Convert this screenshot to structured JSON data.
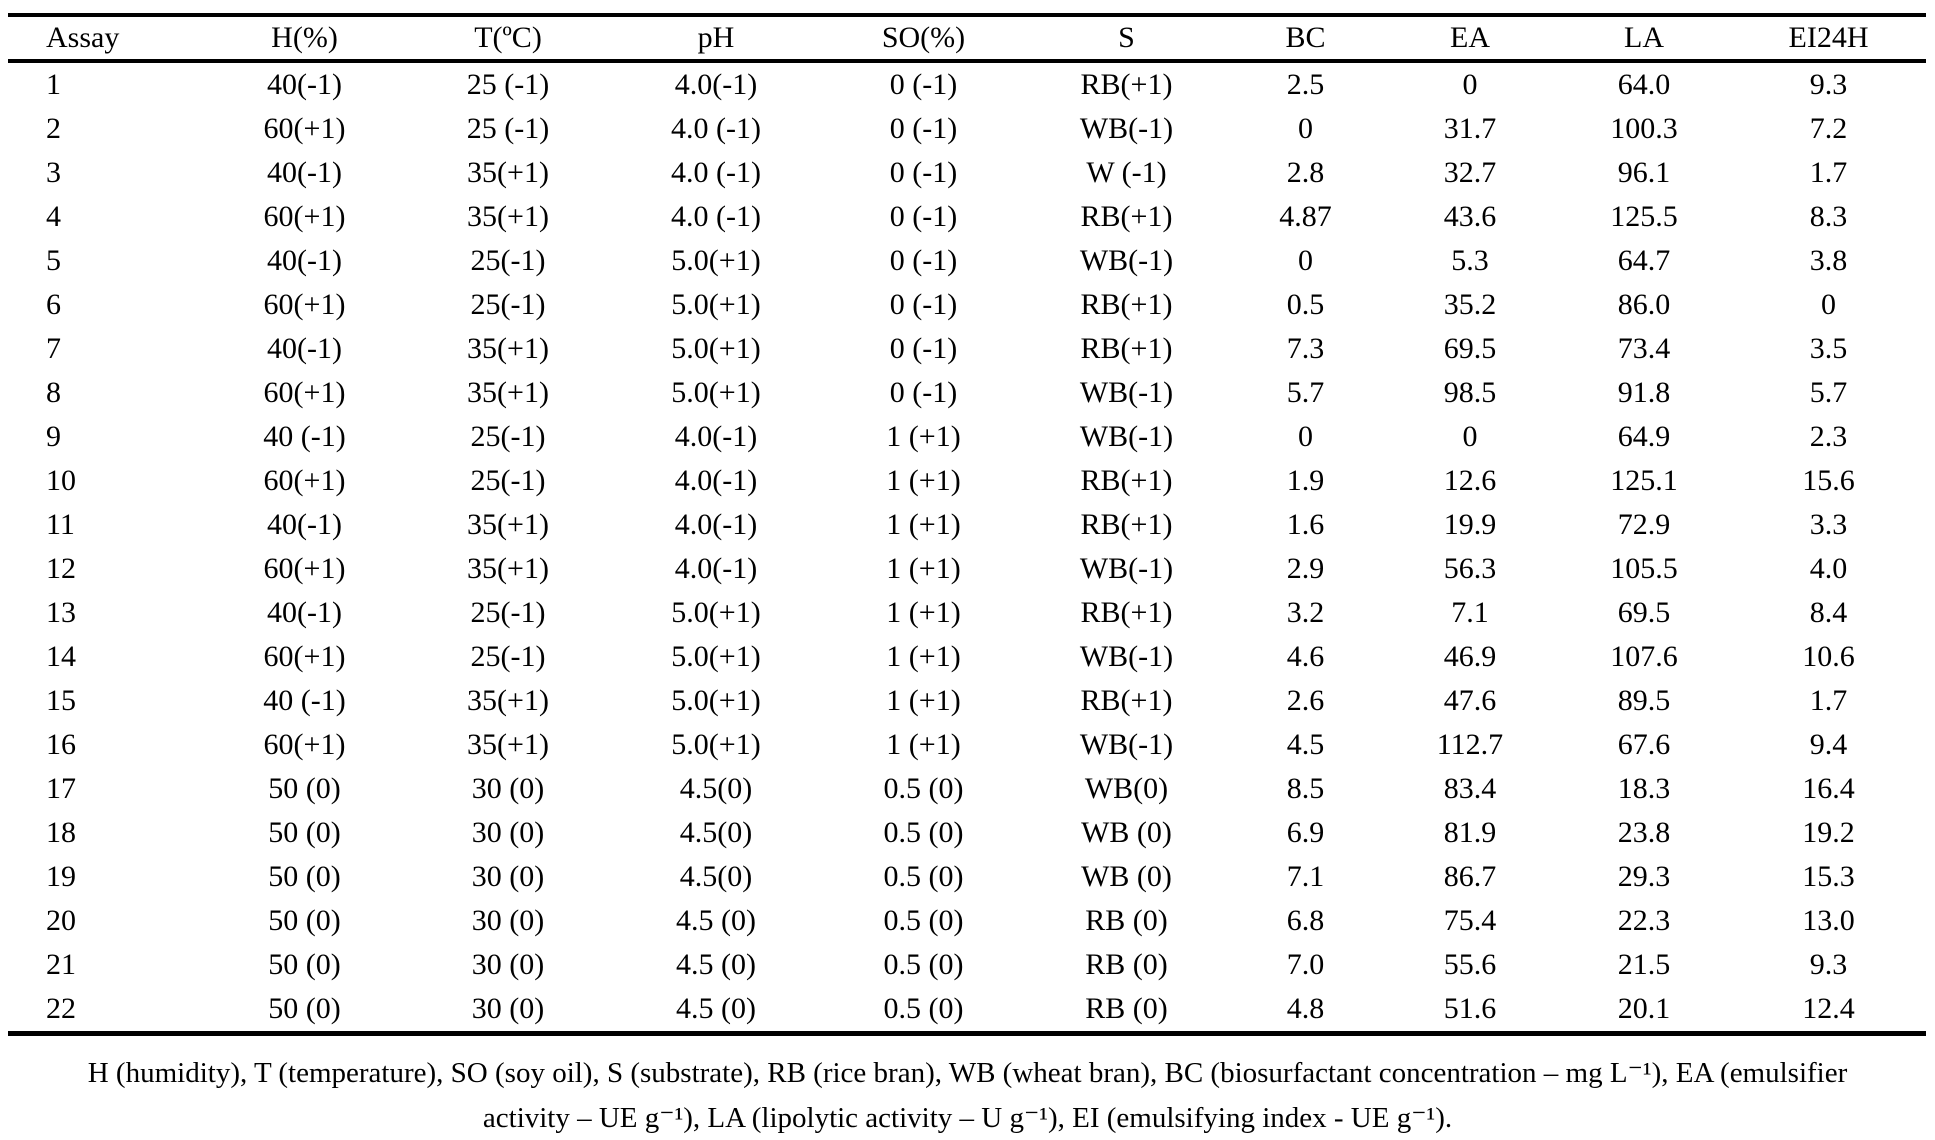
{
  "table": {
    "columns": [
      "Assay",
      "H(%)",
      "T(ºC)",
      "pH",
      "SO(%)",
      "S",
      "BC",
      "EA",
      "LA",
      "EI24H"
    ],
    "column_keys": [
      "assay",
      "h-percent",
      "t-celsius",
      "ph",
      "so-percent",
      "substrate",
      "bc",
      "ea",
      "la",
      "ei24h"
    ],
    "rows": [
      [
        "1",
        "40(-1)",
        "25 (-1)",
        "4.0(-1)",
        "0 (-1)",
        "RB(+1)",
        "2.5",
        "0",
        "64.0",
        "9.3"
      ],
      [
        "2",
        "60(+1)",
        "25 (-1)",
        "4.0 (-1)",
        "0 (-1)",
        "WB(-1)",
        "0",
        "31.7",
        "100.3",
        "7.2"
      ],
      [
        "3",
        "40(-1)",
        "35(+1)",
        "4.0 (-1)",
        "0 (-1)",
        "W (-1)",
        "2.8",
        "32.7",
        "96.1",
        "1.7"
      ],
      [
        "4",
        "60(+1)",
        "35(+1)",
        "4.0 (-1)",
        "0 (-1)",
        "RB(+1)",
        "4.87",
        "43.6",
        "125.5",
        "8.3"
      ],
      [
        "5",
        "40(-1)",
        "25(-1)",
        "5.0(+1)",
        "0 (-1)",
        "WB(-1)",
        "0",
        "5.3",
        "64.7",
        "3.8"
      ],
      [
        "6",
        "60(+1)",
        "25(-1)",
        "5.0(+1)",
        "0 (-1)",
        "RB(+1)",
        "0.5",
        "35.2",
        "86.0",
        "0"
      ],
      [
        "7",
        "40(-1)",
        "35(+1)",
        "5.0(+1)",
        "0 (-1)",
        "RB(+1)",
        "7.3",
        "69.5",
        "73.4",
        "3.5"
      ],
      [
        "8",
        "60(+1)",
        "35(+1)",
        "5.0(+1)",
        "0 (-1)",
        "WB(-1)",
        "5.7",
        "98.5",
        "91.8",
        "5.7"
      ],
      [
        "9",
        "40 (-1)",
        "25(-1)",
        "4.0(-1)",
        "1 (+1)",
        "WB(-1)",
        "0",
        "0",
        "64.9",
        "2.3"
      ],
      [
        "10",
        "60(+1)",
        "25(-1)",
        "4.0(-1)",
        "1 (+1)",
        "RB(+1)",
        "1.9",
        "12.6",
        "125.1",
        "15.6"
      ],
      [
        "11",
        "40(-1)",
        "35(+1)",
        "4.0(-1)",
        "1 (+1)",
        "RB(+1)",
        "1.6",
        "19.9",
        "72.9",
        "3.3"
      ],
      [
        "12",
        "60(+1)",
        "35(+1)",
        "4.0(-1)",
        "1 (+1)",
        "WB(-1)",
        "2.9",
        "56.3",
        "105.5",
        "4.0"
      ],
      [
        "13",
        "40(-1)",
        "25(-1)",
        "5.0(+1)",
        "1 (+1)",
        "RB(+1)",
        "3.2",
        "7.1",
        "69.5",
        "8.4"
      ],
      [
        "14",
        "60(+1)",
        "25(-1)",
        "5.0(+1)",
        "1 (+1)",
        "WB(-1)",
        "4.6",
        "46.9",
        "107.6",
        "10.6"
      ],
      [
        "15",
        "40 (-1)",
        "35(+1)",
        "5.0(+1)",
        "1 (+1)",
        "RB(+1)",
        "2.6",
        "47.6",
        "89.5",
        "1.7"
      ],
      [
        "16",
        "60(+1)",
        "35(+1)",
        "5.0(+1)",
        "1 (+1)",
        "WB(-1)",
        "4.5",
        "112.7",
        "67.6",
        "9.4"
      ],
      [
        "17",
        "50 (0)",
        "30 (0)",
        "4.5(0)",
        "0.5 (0)",
        "WB(0)",
        "8.5",
        "83.4",
        "18.3",
        "16.4"
      ],
      [
        "18",
        "50 (0)",
        "30 (0)",
        "4.5(0)",
        "0.5 (0)",
        "WB (0)",
        "6.9",
        "81.9",
        "23.8",
        "19.2"
      ],
      [
        "19",
        "50 (0)",
        "30 (0)",
        "4.5(0)",
        "0.5 (0)",
        "WB (0)",
        "7.1",
        "86.7",
        "29.3",
        "15.3"
      ],
      [
        "20",
        "50 (0)",
        "30 (0)",
        "4.5 (0)",
        "0.5 (0)",
        "RB (0)",
        "6.8",
        "75.4",
        "22.3",
        "13.0"
      ],
      [
        "21",
        "50 (0)",
        "30 (0)",
        "4.5 (0)",
        "0.5 (0)",
        "RB (0)",
        "7.0",
        "55.6",
        "21.5",
        "9.3"
      ],
      [
        "22",
        "50 (0)",
        "30 (0)",
        "4.5 (0)",
        "0.5 (0)",
        "RB (0)",
        "4.8",
        "51.6",
        "20.1",
        "12.4"
      ]
    ]
  },
  "footnote": {
    "line1": "H (humidity), T (temperature), SO (soy oil), S (substrate), RB (rice bran), WB (wheat bran), BC (biosurfactant concentration – mg L⁻¹), EA (emulsifier",
    "line2": "activity – UE g⁻¹), LA (lipolytic activity – U g⁻¹), EI (emulsifying index - UE g⁻¹)."
  },
  "colors": {
    "text": "#000000",
    "background": "#ffffff",
    "rule": "#000000"
  }
}
